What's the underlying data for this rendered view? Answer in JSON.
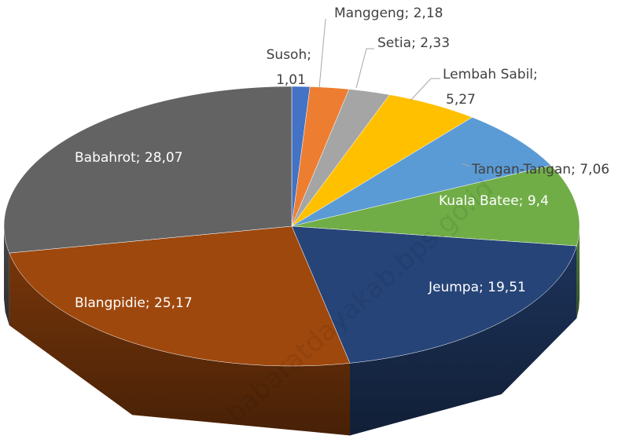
{
  "chart_data": {
    "type": "pie3d",
    "categories": [
      "Susoh",
      "Manggeng",
      "Setia",
      "Lembah Sabil",
      "Tangan-Tangan",
      "Kuala Batee",
      "Jeumpa",
      "Blangpidie",
      "Babahrot"
    ],
    "values": [
      1.01,
      2.18,
      2.33,
      5.27,
      7.06,
      9.4,
      19.51,
      25.17,
      28.07
    ],
    "value_labels": [
      "1,01",
      "2,18",
      "2,33",
      "5,27",
      "7,06",
      "9,4",
      "19,51",
      "25,17",
      "28,07"
    ],
    "label_separator": "; ",
    "colors": [
      "#4472c4",
      "#ed7d31",
      "#a5a5a5",
      "#ffc000",
      "#5b9bd5",
      "#70ad47",
      "#264478",
      "#9e480e",
      "#636363"
    ],
    "watermark": "babaratdayakab.bps.go.id"
  }
}
